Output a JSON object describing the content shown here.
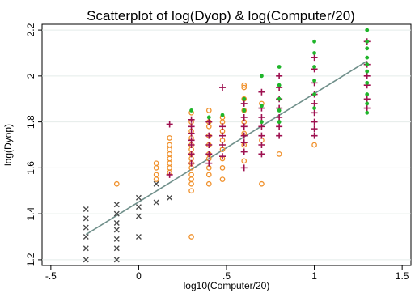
{
  "chart_data": {
    "type": "scatter",
    "title": "Scatterplot of log(Dyop) & log(Computer/20)",
    "xlabel": "log10(Computer/20)",
    "ylabel": "log(Dyop)",
    "xlim": [
      -0.55,
      1.55
    ],
    "ylim": [
      1.175,
      2.225
    ],
    "x_ticks": [
      -0.5,
      0,
      0.5,
      1,
      1.5
    ],
    "x_tick_labels": [
      "-.5",
      "0",
      ".5",
      "1",
      "1.5"
    ],
    "y_ticks": [
      1.2,
      1.4,
      1.6,
      1.8,
      2.0,
      2.2
    ],
    "y_tick_labels": [
      "1.2",
      "1.4",
      "1.6",
      "1.8",
      "2",
      "2.2"
    ],
    "grid": "horizontal",
    "colors": {
      "grey_x": "#4a4a4a",
      "orange_circle": "#f0902a",
      "crimson_plus": "#9e1050",
      "green_dot": "#1fb52a",
      "fit_line": "#6f8f8a",
      "grid": "#e4ece9"
    },
    "fit_line": {
      "x": [
        -0.3,
        1.3
      ],
      "y": [
        1.31,
        2.065
      ]
    },
    "series": [
      {
        "marker": "x",
        "color": "grey_x",
        "points": [
          [
            -0.3,
            1.2
          ],
          [
            -0.3,
            1.25
          ],
          [
            -0.3,
            1.3
          ],
          [
            -0.3,
            1.34
          ],
          [
            -0.3,
            1.38
          ],
          [
            -0.3,
            1.42
          ],
          [
            -0.125,
            1.2
          ],
          [
            -0.125,
            1.25
          ],
          [
            -0.125,
            1.29
          ],
          [
            -0.125,
            1.33
          ],
          [
            -0.125,
            1.36
          ],
          [
            -0.125,
            1.4
          ],
          [
            -0.125,
            1.44
          ],
          [
            0,
            1.3
          ],
          [
            0,
            1.39
          ],
          [
            0,
            1.43
          ],
          [
            0,
            1.47
          ],
          [
            0.1,
            1.45
          ],
          [
            0.1,
            1.53
          ],
          [
            0.176,
            1.47
          ]
        ]
      },
      {
        "marker": "circle",
        "color": "orange_circle",
        "points": [
          [
            -0.125,
            1.53
          ],
          [
            0.1,
            1.55
          ],
          [
            0.1,
            1.57
          ],
          [
            0.1,
            1.6
          ],
          [
            0.1,
            1.62
          ],
          [
            0.176,
            1.58
          ],
          [
            0.176,
            1.6
          ],
          [
            0.176,
            1.62
          ],
          [
            0.176,
            1.64
          ],
          [
            0.176,
            1.66
          ],
          [
            0.176,
            1.68
          ],
          [
            0.176,
            1.7
          ],
          [
            0.176,
            1.73
          ],
          [
            0.3,
            1.3
          ],
          [
            0.3,
            1.5
          ],
          [
            0.3,
            1.53
          ],
          [
            0.3,
            1.55
          ],
          [
            0.3,
            1.57
          ],
          [
            0.3,
            1.6
          ],
          [
            0.3,
            1.62
          ],
          [
            0.3,
            1.64
          ],
          [
            0.3,
            1.66
          ],
          [
            0.3,
            1.68
          ],
          [
            0.3,
            1.7
          ],
          [
            0.3,
            1.73
          ],
          [
            0.3,
            1.76
          ],
          [
            0.3,
            1.8
          ],
          [
            0.3,
            1.84
          ],
          [
            0.4,
            1.53
          ],
          [
            0.4,
            1.57
          ],
          [
            0.4,
            1.6
          ],
          [
            0.4,
            1.64
          ],
          [
            0.4,
            1.66
          ],
          [
            0.4,
            1.7
          ],
          [
            0.4,
            1.74
          ],
          [
            0.4,
            1.78
          ],
          [
            0.4,
            1.8
          ],
          [
            0.4,
            1.85
          ],
          [
            0.477,
            1.55
          ],
          [
            0.477,
            1.6
          ],
          [
            0.477,
            1.64
          ],
          [
            0.477,
            1.68
          ],
          [
            0.477,
            1.72
          ],
          [
            0.477,
            1.76
          ],
          [
            0.477,
            1.8
          ],
          [
            0.477,
            1.82
          ],
          [
            0.6,
            1.63
          ],
          [
            0.6,
            1.7
          ],
          [
            0.6,
            1.75
          ],
          [
            0.6,
            1.8
          ],
          [
            0.6,
            1.85
          ],
          [
            0.6,
            1.9
          ],
          [
            0.6,
            1.95
          ],
          [
            0.6,
            1.96
          ],
          [
            0.7,
            1.53
          ],
          [
            0.7,
            1.72
          ],
          [
            0.7,
            1.88
          ],
          [
            0.8,
            1.66
          ],
          [
            1.0,
            1.7
          ]
        ]
      },
      {
        "marker": "plus",
        "color": "crimson_plus",
        "points": [
          [
            0.176,
            1.57
          ],
          [
            0.176,
            1.79
          ],
          [
            0.3,
            1.62
          ],
          [
            0.3,
            1.66
          ],
          [
            0.3,
            1.7
          ],
          [
            0.3,
            1.72
          ],
          [
            0.3,
            1.75
          ],
          [
            0.3,
            1.78
          ],
          [
            0.3,
            1.81
          ],
          [
            0.4,
            1.62
          ],
          [
            0.4,
            1.66
          ],
          [
            0.4,
            1.7
          ],
          [
            0.4,
            1.74
          ],
          [
            0.4,
            1.8
          ],
          [
            0.477,
            1.65
          ],
          [
            0.477,
            1.7
          ],
          [
            0.477,
            1.74
          ],
          [
            0.477,
            1.78
          ],
          [
            0.477,
            1.95
          ],
          [
            0.6,
            1.6
          ],
          [
            0.6,
            1.67
          ],
          [
            0.6,
            1.71
          ],
          [
            0.6,
            1.74
          ],
          [
            0.6,
            1.78
          ],
          [
            0.6,
            1.82
          ],
          [
            0.6,
            1.88
          ],
          [
            0.7,
            1.66
          ],
          [
            0.7,
            1.7
          ],
          [
            0.7,
            1.74
          ],
          [
            0.7,
            1.78
          ],
          [
            0.7,
            1.82
          ],
          [
            0.7,
            1.86
          ],
          [
            0.7,
            1.93
          ],
          [
            0.8,
            1.74
          ],
          [
            0.8,
            1.78
          ],
          [
            0.8,
            1.82
          ],
          [
            0.8,
            1.86
          ],
          [
            0.8,
            1.9
          ],
          [
            0.8,
            1.95
          ],
          [
            0.8,
            2.0
          ],
          [
            1.0,
            1.74
          ],
          [
            1.0,
            1.77
          ],
          [
            1.0,
            1.8
          ],
          [
            1.0,
            1.84
          ],
          [
            1.0,
            1.88
          ],
          [
            1.0,
            1.92
          ],
          [
            1.0,
            1.97
          ],
          [
            1.0,
            2.03
          ],
          [
            1.0,
            2.08
          ],
          [
            1.3,
            1.86
          ],
          [
            1.3,
            1.9
          ],
          [
            1.3,
            1.96
          ],
          [
            1.3,
            2.0
          ],
          [
            1.3,
            2.05
          ],
          [
            1.3,
            2.15
          ]
        ]
      },
      {
        "marker": "dot",
        "color": "green_dot",
        "points": [
          [
            0.3,
            1.85
          ],
          [
            0.4,
            1.82
          ],
          [
            0.477,
            1.83
          ],
          [
            0.6,
            1.85
          ],
          [
            0.6,
            1.9
          ],
          [
            0.7,
            1.8
          ],
          [
            0.7,
            1.87
          ],
          [
            0.7,
            2.0
          ],
          [
            0.8,
            1.8
          ],
          [
            0.8,
            1.85
          ],
          [
            0.8,
            1.9
          ],
          [
            0.8,
            1.96
          ],
          [
            0.8,
            2.04
          ],
          [
            1.0,
            1.86
          ],
          [
            1.0,
            1.92
          ],
          [
            1.0,
            1.98
          ],
          [
            1.0,
            2.04
          ],
          [
            1.0,
            2.1
          ],
          [
            1.0,
            2.15
          ],
          [
            1.3,
            1.84
          ],
          [
            1.3,
            1.88
          ],
          [
            1.3,
            1.92
          ],
          [
            1.3,
            1.97
          ],
          [
            1.3,
            2.02
          ],
          [
            1.3,
            2.05
          ],
          [
            1.3,
            2.08
          ],
          [
            1.3,
            2.12
          ],
          [
            1.3,
            2.15
          ],
          [
            1.3,
            2.2
          ]
        ]
      }
    ]
  }
}
